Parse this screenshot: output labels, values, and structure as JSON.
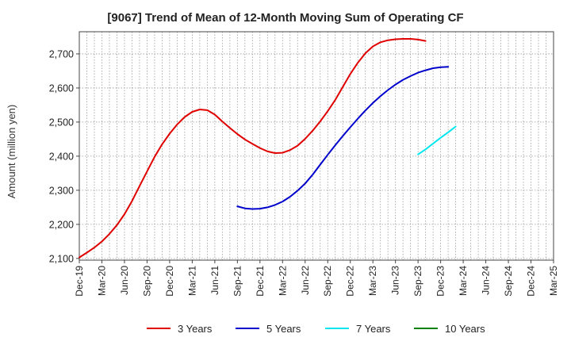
{
  "chart_data": {
    "type": "line",
    "title": "[9067]  Trend of Mean of 12-Month Moving Sum of Operating CF",
    "xlabel": "",
    "ylabel": "Amount (million yen)",
    "ylim": [
      2095,
      2765
    ],
    "yticks": [
      2100,
      2200,
      2300,
      2400,
      2500,
      2600,
      2700
    ],
    "ytick_labels": [
      "2,100",
      "2,200",
      "2,300",
      "2,400",
      "2,500",
      "2,600",
      "2,700"
    ],
    "xlim": [
      0,
      63
    ],
    "xtick_labels": [
      "Dec-19",
      "Mar-20",
      "Jun-20",
      "Sep-20",
      "Dec-20",
      "Mar-21",
      "Jun-21",
      "Sep-21",
      "Dec-21",
      "Mar-22",
      "Jun-22",
      "Sep-22",
      "Dec-22",
      "Mar-23",
      "Jun-23",
      "Sep-23",
      "Dec-23",
      "Mar-24",
      "Jun-24",
      "Sep-24",
      "Dec-24",
      "Mar-25"
    ],
    "grid": true,
    "legend_position": "bottom",
    "series": [
      {
        "name": "3 Years",
        "color": "#e00000",
        "start_index": 0,
        "values": [
          2103,
          2117,
          2132,
          2150,
          2172,
          2198,
          2230,
          2268,
          2312,
          2355,
          2398,
          2435,
          2466,
          2493,
          2515,
          2530,
          2537,
          2535,
          2522,
          2502,
          2483,
          2465,
          2449,
          2436,
          2424,
          2414,
          2409,
          2410,
          2418,
          2431,
          2451,
          2475,
          2502,
          2532,
          2565,
          2603,
          2641,
          2674,
          2702,
          2722,
          2734,
          2740,
          2743,
          2744,
          2744,
          2742,
          2738
        ]
      },
      {
        "name": "5 Years",
        "color": "#0000cc",
        "start_index": 21,
        "values": [
          2253,
          2247,
          2245,
          2246,
          2250,
          2257,
          2267,
          2281,
          2299,
          2320,
          2346,
          2375,
          2404,
          2432,
          2459,
          2485,
          2510,
          2534,
          2556,
          2576,
          2594,
          2610,
          2624,
          2635,
          2645,
          2652,
          2658,
          2661,
          2662
        ]
      },
      {
        "name": "7 Years",
        "color": "#00e5ee",
        "start_index": 45,
        "values": [
          2405,
          2420,
          2437,
          2454,
          2470,
          2487
        ]
      },
      {
        "name": "10 Years",
        "color": "#008000",
        "start_index": 0,
        "values": []
      }
    ]
  }
}
